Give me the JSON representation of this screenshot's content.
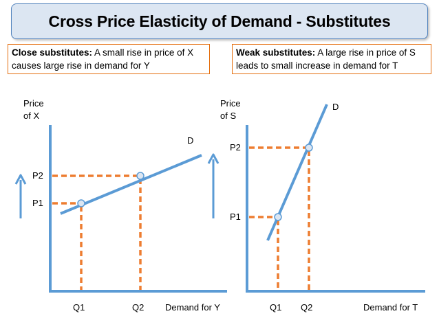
{
  "title": "Cross Price Elasticity of Demand - Substitutes",
  "notes": {
    "left": {
      "bold": "Close substitutes:",
      "text": " A small rise in price of X causes large rise in demand for Y"
    },
    "right": {
      "bold": "Weak substitutes:",
      "text": " A large rise in price of S leads to small increase in demand for T"
    }
  },
  "left_chart": {
    "y_axis_line1": "Price",
    "y_axis_line2": "of X",
    "x_axis": "Demand for Y",
    "curve_label": "D",
    "p1": "P1",
    "p2": "P2",
    "q1": "Q1",
    "q2": "Q2"
  },
  "right_chart": {
    "y_axis_line1": "Price",
    "y_axis_line2": "of S",
    "x_axis": "Demand for T",
    "curve_label": "D",
    "p1": "P1",
    "p2": "P2",
    "q1": "Q1",
    "q2": "Q2"
  },
  "colors": {
    "axis": "#5b9bd5",
    "guide": "#ed7d31",
    "title_bg": "#dce6f2",
    "note_border": "#e46c0a"
  }
}
